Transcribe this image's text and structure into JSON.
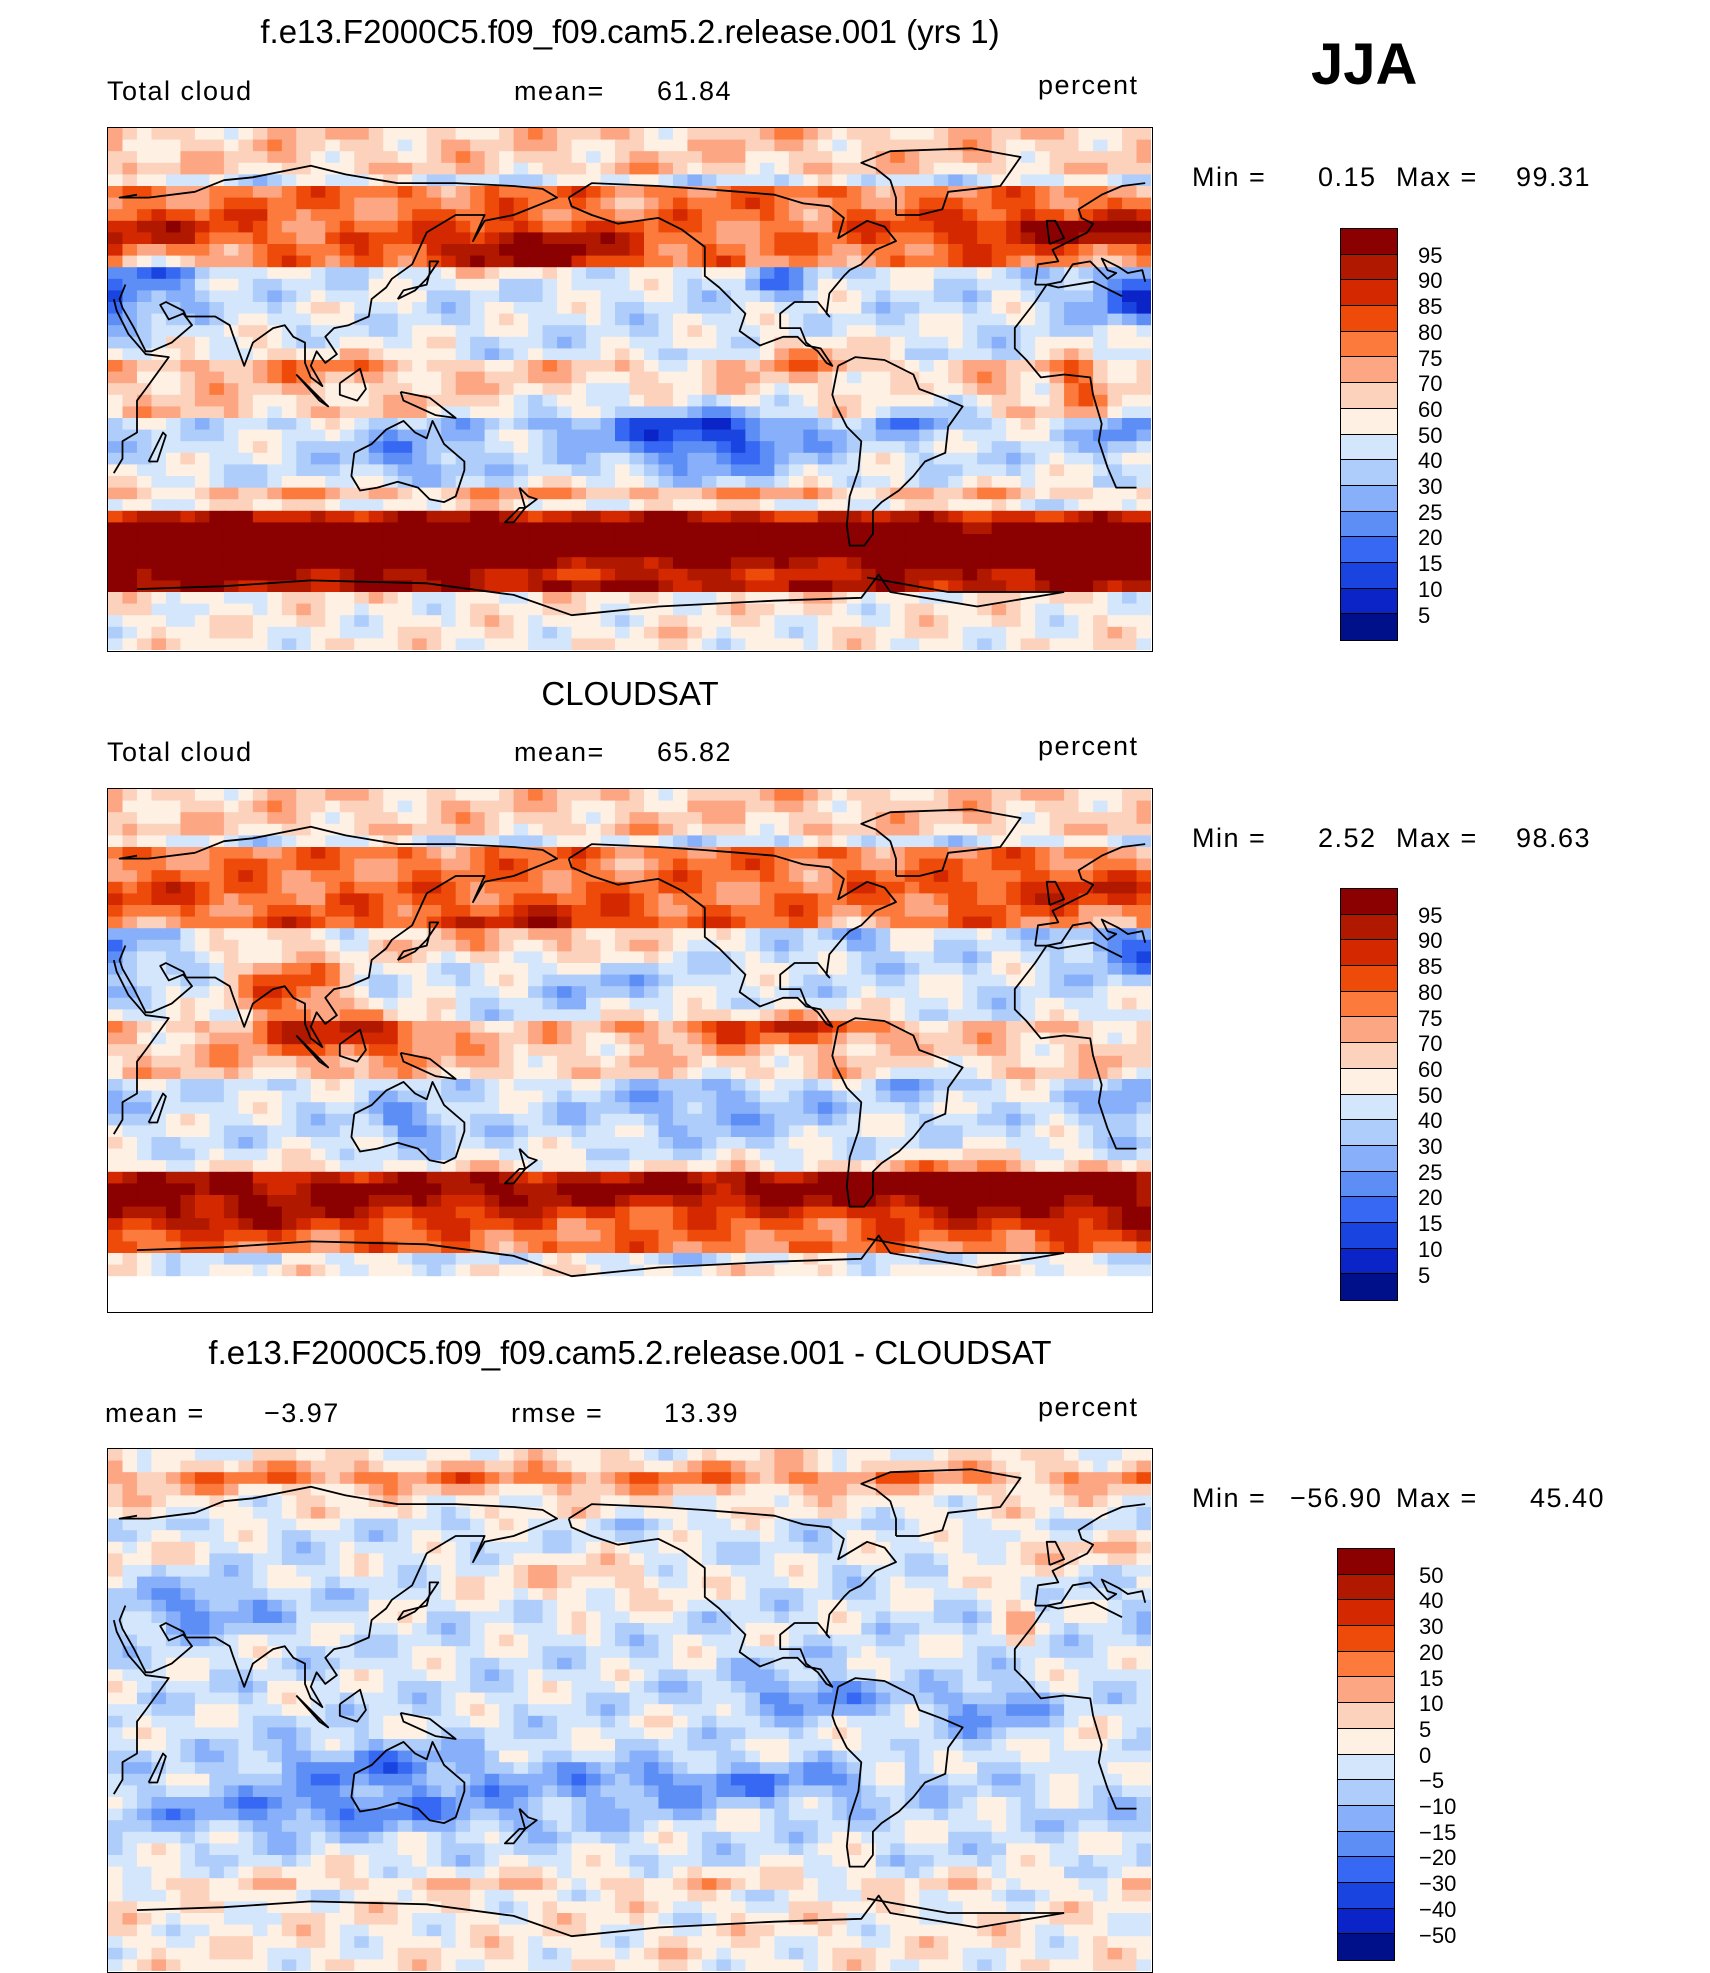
{
  "season": "JJA",
  "panels": [
    {
      "title": "f.e13.F2000C5.f09_f09.cam5.2.release.001 (yrs 1)",
      "left": "Total cloud",
      "center_label": "mean=",
      "center_value": "61.84",
      "right": "percent",
      "min_label": "Min =",
      "min_value": "0.15",
      "max_label": "Max =",
      "max_value": "99.31",
      "map_kind": "model",
      "colorbar": {
        "labels": [
          "95",
          "90",
          "85",
          "80",
          "75",
          "70",
          "60",
          "50",
          "40",
          "30",
          "25",
          "20",
          "15",
          "10",
          "5"
        ],
        "colors": [
          "#8b0000",
          "#b01800",
          "#d42800",
          "#ee4a0a",
          "#fb7a3c",
          "#fca683",
          "#fcd2bd",
          "#fff0e4",
          "#d4e6fb",
          "#afcdfa",
          "#88b0fa",
          "#5c8ef6",
          "#3668f3",
          "#1a44e0",
          "#0a24c8",
          "#00108a"
        ]
      }
    },
    {
      "title": "CLOUDSAT",
      "left": "Total cloud",
      "center_label": "mean=",
      "center_value": "65.82",
      "right": "percent",
      "min_label": "Min =",
      "min_value": "2.52",
      "max_label": "Max =",
      "max_value": "98.63",
      "map_kind": "obs",
      "colorbar": {
        "labels": [
          "95",
          "90",
          "85",
          "80",
          "75",
          "70",
          "60",
          "50",
          "40",
          "30",
          "25",
          "20",
          "15",
          "10",
          "5"
        ],
        "colors": [
          "#8b0000",
          "#b01800",
          "#d42800",
          "#ee4a0a",
          "#fb7a3c",
          "#fca683",
          "#fcd2bd",
          "#fff0e4",
          "#d4e6fb",
          "#afcdfa",
          "#88b0fa",
          "#5c8ef6",
          "#3668f3",
          "#1a44e0",
          "#0a24c8",
          "#00108a"
        ]
      }
    },
    {
      "title": "f.e13.F2000C5.f09_f09.cam5.2.release.001 - CLOUDSAT",
      "left": "mean =",
      "left_value": "−3.97",
      "center_label": "rmse =",
      "center_value": "13.39",
      "right": "percent",
      "min_label": "Min =",
      "min_value": "−56.90",
      "max_label": "Max =",
      "max_value": "45.40",
      "map_kind": "diff",
      "colorbar": {
        "labels": [
          "50",
          "40",
          "30",
          "20",
          "15",
          "10",
          "5",
          "0",
          "−5",
          "−10",
          "−15",
          "−20",
          "−30",
          "−40",
          "−50"
        ],
        "colors": [
          "#8b0000",
          "#b01800",
          "#d42800",
          "#ee4a0a",
          "#fb7a3c",
          "#fca683",
          "#fcd2bd",
          "#fff0e4",
          "#d4e6fb",
          "#afcdfa",
          "#88b0fa",
          "#5c8ef6",
          "#3668f3",
          "#1a44e0",
          "#0a24c8",
          "#00108a"
        ]
      }
    }
  ]
}
